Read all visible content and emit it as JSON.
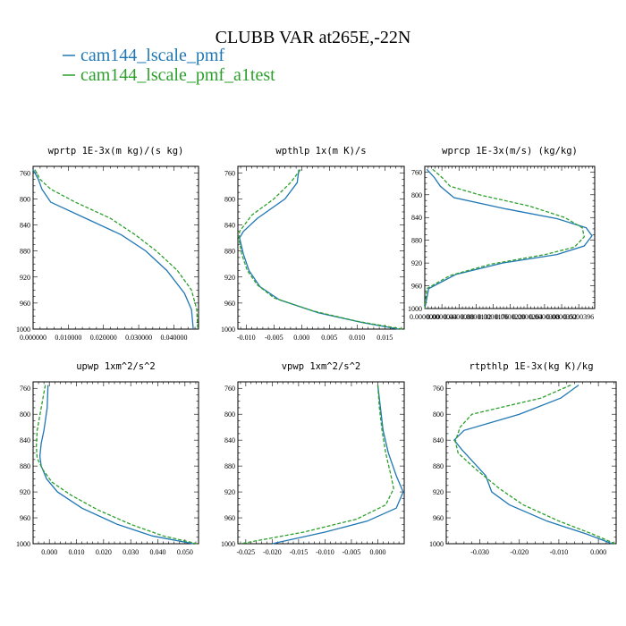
{
  "figure": {
    "title": "CLUBB VAR at265E,-22N",
    "legend": [
      {
        "label": "cam144_lscale_pmf",
        "color": "#1f77b4"
      },
      {
        "label": "cam144_lscale_pmf_a1test",
        "color": "#2ca02c"
      }
    ]
  },
  "chart_data": [
    {
      "type": "line",
      "title": "wprtp  1E-3x(m kg)/(s kg)",
      "ylim": [
        1000,
        750
      ],
      "y_ticks": [
        760,
        800,
        840,
        880,
        920,
        960,
        1000
      ],
      "xlim": [
        0.0,
        0.047
      ],
      "x_ticks": [
        0.0,
        0.01,
        0.02,
        0.03,
        0.04
      ],
      "x_tick_labels": [
        "0.000000",
        "0.010000",
        "0.020000",
        "0.030000",
        "0.040000"
      ],
      "series": [
        {
          "color": "#1f77b4",
          "dash": "none",
          "points": [
            [
              0.0,
              755
            ],
            [
              0.0015,
              770
            ],
            [
              0.0025,
              785
            ],
            [
              0.005,
              805
            ],
            [
              0.015,
              830
            ],
            [
              0.025,
              855
            ],
            [
              0.032,
              880
            ],
            [
              0.038,
              910
            ],
            [
              0.043,
              945
            ],
            [
              0.045,
              970
            ],
            [
              0.0455,
              1000
            ]
          ]
        },
        {
          "color": "#2ca02c",
          "dash": "4,2",
          "points": [
            [
              0.0005,
              755
            ],
            [
              0.002,
              770
            ],
            [
              0.005,
              785
            ],
            [
              0.012,
              805
            ],
            [
              0.022,
              830
            ],
            [
              0.029,
              855
            ],
            [
              0.035,
              880
            ],
            [
              0.041,
              910
            ],
            [
              0.045,
              940
            ],
            [
              0.0465,
              970
            ],
            [
              0.0468,
              1000
            ]
          ]
        }
      ]
    },
    {
      "type": "line",
      "title": "wpthlp  1x(m K)/s",
      "ylim": [
        1000,
        750
      ],
      "y_ticks": [
        760,
        800,
        840,
        880,
        920,
        960,
        1000
      ],
      "xlim": [
        -0.0115,
        0.0185
      ],
      "x_ticks": [
        -0.01,
        -0.005,
        0.0,
        0.005,
        0.01,
        0.015
      ],
      "x_tick_labels": [
        "-0.010",
        "-0.005",
        "0.000",
        "0.005",
        "0.010",
        "0.015"
      ],
      "series": [
        {
          "color": "#1f77b4",
          "dash": "none",
          "points": [
            [
              -0.0005,
              755
            ],
            [
              -0.0008,
              775
            ],
            [
              -0.003,
              800
            ],
            [
              -0.008,
              830
            ],
            [
              -0.0105,
              850
            ],
            [
              -0.0112,
              860
            ],
            [
              -0.0105,
              885
            ],
            [
              -0.0095,
              910
            ],
            [
              -0.0075,
              935
            ],
            [
              -0.004,
              955
            ],
            [
              0.003,
              975
            ],
            [
              0.011,
              990
            ],
            [
              0.0175,
              1000
            ]
          ]
        },
        {
          "color": "#2ca02c",
          "dash": "4,2",
          "points": [
            [
              -0.0002,
              755
            ],
            [
              -0.002,
              775
            ],
            [
              -0.005,
              800
            ],
            [
              -0.009,
              825
            ],
            [
              -0.0112,
              850
            ],
            [
              -0.0113,
              862
            ],
            [
              -0.0108,
              885
            ],
            [
              -0.0098,
              910
            ],
            [
              -0.008,
              932
            ],
            [
              -0.005,
              952
            ],
            [
              0.002,
              972
            ],
            [
              0.01,
              988
            ],
            [
              0.0182,
              1000
            ]
          ]
        }
      ]
    },
    {
      "type": "line",
      "title": "wprcp  1E-3x(m/s) (kg/kg)",
      "ylim": [
        1000,
        750
      ],
      "y_ticks": [
        760,
        800,
        840,
        880,
        920,
        960,
        1000
      ],
      "xlim": [
        0.0,
        4.37e-05
      ],
      "x_ticks": [
        0.0,
        4.4e-06,
        8.8e-06,
        1.32e-05,
        1.76e-05,
        2.2e-05,
        2.64e-05,
        3.08e-05,
        3.52e-05,
        3.96e-05
      ],
      "x_tick_labels": [
        "0.0000000",
        "0.0000044",
        "0.0000088",
        "0.0000132",
        "0.0000176",
        "0.0000220",
        "0.0000264",
        "0.0000308",
        "0.0000352",
        "0.0000396"
      ],
      "series": [
        {
          "color": "#1f77b4",
          "dash": "none",
          "points": [
            [
              5e-07,
              755
            ],
            [
              2.5e-06,
              770
            ],
            [
              4e-06,
              785
            ],
            [
              7.5e-06,
              805
            ],
            [
              2.1e-05,
              825
            ],
            [
              3.4e-05,
              842
            ],
            [
              4.15e-05,
              858
            ],
            [
              4.3e-05,
              872
            ],
            [
              4.1e-05,
              890
            ],
            [
              3.4e-05,
              905
            ],
            [
              2e-05,
              920
            ],
            [
              8e-06,
              940
            ],
            [
              1e-06,
              965
            ],
            [
              0.0,
              1000
            ]
          ]
        },
        {
          "color": "#2ca02c",
          "dash": "4,2",
          "points": [
            [
              2e-06,
              755
            ],
            [
              4.5e-06,
              770
            ],
            [
              6.5e-06,
              785
            ],
            [
              1.4e-05,
              800
            ],
            [
              2.7e-05,
              820
            ],
            [
              3.6e-05,
              840
            ],
            [
              4.05e-05,
              858
            ],
            [
              4.1e-05,
              874
            ],
            [
              3.85e-05,
              892
            ],
            [
              3.1e-05,
              905
            ],
            [
              1.7e-05,
              922
            ],
            [
              6.5e-06,
              942
            ],
            [
              5e-07,
              965
            ],
            [
              0.0,
              1000
            ]
          ]
        }
      ]
    },
    {
      "type": "line",
      "title": "upwp  1xm^2/s^2",
      "ylim": [
        1000,
        750
      ],
      "y_ticks": [
        760,
        800,
        840,
        880,
        920,
        960,
        1000
      ],
      "xlim": [
        -0.006,
        0.055
      ],
      "x_ticks": [
        0.0,
        0.01,
        0.02,
        0.03,
        0.04,
        0.05
      ],
      "x_tick_labels": [
        "0.000",
        "0.010",
        "0.020",
        "0.030",
        "0.040",
        "0.050"
      ],
      "series": [
        {
          "color": "#1f77b4",
          "dash": "none",
          "points": [
            [
              -0.0005,
              755
            ],
            [
              -0.0008,
              790
            ],
            [
              -0.002,
              825
            ],
            [
              -0.003,
              845
            ],
            [
              -0.0035,
              865
            ],
            [
              -0.003,
              880
            ],
            [
              -0.001,
              900
            ],
            [
              0.003,
              920
            ],
            [
              0.012,
              945
            ],
            [
              0.025,
              970
            ],
            [
              0.038,
              988
            ],
            [
              0.053,
              1000
            ]
          ]
        },
        {
          "color": "#2ca02c",
          "dash": "4,2",
          "points": [
            [
              -0.0015,
              755
            ],
            [
              -0.003,
              790
            ],
            [
              -0.0045,
              825
            ],
            [
              -0.0048,
              850
            ],
            [
              -0.0045,
              868
            ],
            [
              -0.0025,
              885
            ],
            [
              0.001,
              905
            ],
            [
              0.008,
              925
            ],
            [
              0.018,
              948
            ],
            [
              0.03,
              970
            ],
            [
              0.042,
              988
            ],
            [
              0.0545,
              1000
            ]
          ]
        }
      ]
    },
    {
      "type": "line",
      "title": "vpwp  1xm^2/s^2",
      "ylim": [
        1000,
        750
      ],
      "y_ticks": [
        760,
        800,
        840,
        880,
        920,
        960,
        1000
      ],
      "xlim": [
        -0.0265,
        0.005
      ],
      "x_ticks": [
        -0.025,
        -0.02,
        -0.015,
        -0.01,
        -0.005,
        0.0
      ],
      "x_tick_labels": [
        "-0.025",
        "-0.020",
        "-0.015",
        "-0.010",
        "-0.005",
        "0.000"
      ],
      "series": [
        {
          "color": "#1f77b4",
          "dash": "none",
          "points": [
            [
              0.0,
              755
            ],
            [
              0.0005,
              790
            ],
            [
              0.001,
              825
            ],
            [
              0.002,
              860
            ],
            [
              0.0035,
              895
            ],
            [
              0.0048,
              920
            ],
            [
              0.0035,
              945
            ],
            [
              -0.002,
              965
            ],
            [
              -0.01,
              982
            ],
            [
              -0.02,
              1000
            ]
          ]
        },
        {
          "color": "#2ca02c",
          "dash": "4,2",
          "points": [
            [
              0.0,
              755
            ],
            [
              0.0003,
              790
            ],
            [
              0.0008,
              825
            ],
            [
              0.0015,
              860
            ],
            [
              0.0025,
              895
            ],
            [
              0.003,
              915
            ],
            [
              0.0015,
              940
            ],
            [
              -0.004,
              962
            ],
            [
              -0.014,
              982
            ],
            [
              -0.026,
              1000
            ]
          ]
        }
      ]
    },
    {
      "type": "line",
      "title": "rtpthlp  1E-3x(kg K)/kg",
      "ylim": [
        1000,
        750
      ],
      "y_ticks": [
        760,
        800,
        840,
        880,
        920,
        960,
        1000
      ],
      "xlim": [
        -0.0385,
        0.0045
      ],
      "x_ticks": [
        -0.03,
        -0.02,
        -0.01,
        0.0
      ],
      "x_tick_labels": [
        "-0.030",
        "-0.020",
        "-0.010",
        "0.000"
      ],
      "series": [
        {
          "color": "#1f77b4",
          "dash": "none",
          "points": [
            [
              -0.005,
              755
            ],
            [
              -0.0095,
              775
            ],
            [
              -0.02,
              800
            ],
            [
              -0.034,
              825
            ],
            [
              -0.0365,
              840
            ],
            [
              -0.0345,
              855
            ],
            [
              -0.0285,
              895
            ],
            [
              -0.027,
              920
            ],
            [
              -0.0225,
              940
            ],
            [
              -0.013,
              965
            ],
            [
              -0.003,
              985
            ],
            [
              0.0035,
              1000
            ]
          ]
        },
        {
          "color": "#2ca02c",
          "dash": "4,2",
          "points": [
            [
              -0.007,
              755
            ],
            [
              -0.0145,
              775
            ],
            [
              -0.032,
              800
            ],
            [
              -0.035,
              820
            ],
            [
              -0.0362,
              842
            ],
            [
              -0.0355,
              860
            ],
            [
              -0.031,
              885
            ],
            [
              -0.025,
              915
            ],
            [
              -0.019,
              940
            ],
            [
              -0.01,
              965
            ],
            [
              -0.0015,
              985
            ],
            [
              0.0042,
              1000
            ]
          ]
        }
      ]
    }
  ]
}
